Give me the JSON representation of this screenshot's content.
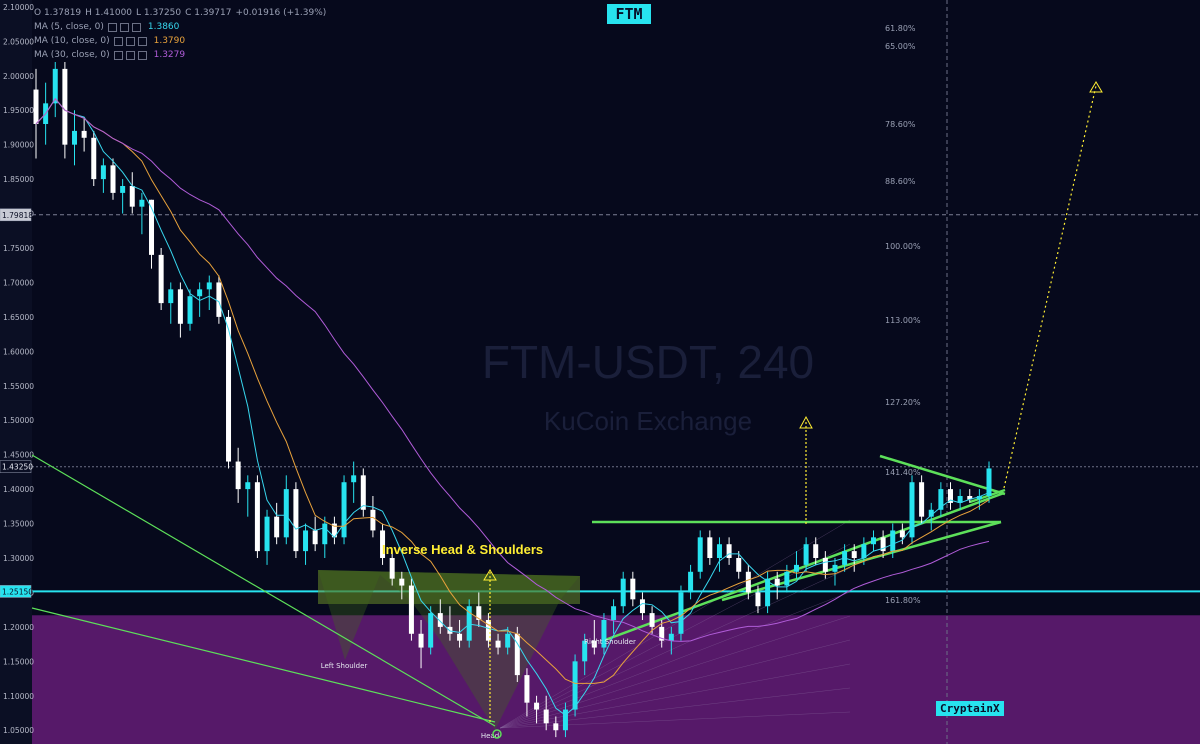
{
  "title": "FTM",
  "watermark": {
    "line1": "FTM-USDT, 240",
    "line2": "KuCoin Exchange"
  },
  "author": "CryptainX",
  "legend": {
    "ohlc": {
      "o": "O 1.37819",
      "h": "H 1.41000",
      "l": "L 1.37250",
      "c": "C 1.39717",
      "chg": "+0.01916 (+1.39%)"
    },
    "ma": [
      {
        "label": "MA (5, close, 0)",
        "value": "1.3860",
        "color": "#38d8ef"
      },
      {
        "label": "MA (10, close, 0)",
        "value": "1.3790",
        "color": "#e8a23c"
      },
      {
        "label": "MA (30, close, 0)",
        "value": "1.3279",
        "color": "#b05cd8"
      }
    ]
  },
  "annotations": {
    "pattern": "Inverse Head & Shoulders",
    "left_shoulder": "Left Shoulder",
    "head": "Head",
    "right_shoulder": "Right Shoulder"
  },
  "chart_data": {
    "type": "candlestick",
    "y_axis": {
      "side": "left",
      "ticks": [
        "2.10000",
        "2.05000",
        "2.00000",
        "1.95000",
        "1.90000",
        "1.85000",
        "1.80000",
        "1.75000",
        "1.70000",
        "1.65000",
        "1.60000",
        "1.55000",
        "1.50000",
        "1.45000",
        "1.40000",
        "1.35000",
        "1.30000",
        "1.25000",
        "1.20000",
        "1.15000",
        "1.10000",
        "1.05000"
      ],
      "range": [
        1.03,
        2.11
      ]
    },
    "price_labels": {
      "current": "1.43250",
      "crosshair": "1.79818",
      "support": "1.25150"
    },
    "levels": {
      "support": 1.2515,
      "crosshair": 1.79818,
      "current": 1.4325
    },
    "zones": {
      "purple_below": 1.217
    },
    "candles": [
      [
        1.98,
        2.01,
        1.88,
        1.93
      ],
      [
        1.93,
        1.99,
        1.9,
        1.96
      ],
      [
        1.96,
        2.02,
        1.94,
        2.01
      ],
      [
        2.01,
        2.02,
        1.88,
        1.9
      ],
      [
        1.9,
        1.95,
        1.87,
        1.92
      ],
      [
        1.92,
        1.94,
        1.89,
        1.91
      ],
      [
        1.91,
        1.92,
        1.84,
        1.85
      ],
      [
        1.85,
        1.88,
        1.83,
        1.87
      ],
      [
        1.87,
        1.88,
        1.82,
        1.83
      ],
      [
        1.83,
        1.85,
        1.8,
        1.84
      ],
      [
        1.84,
        1.86,
        1.8,
        1.81
      ],
      [
        1.81,
        1.83,
        1.77,
        1.82
      ],
      [
        1.82,
        1.82,
        1.72,
        1.74
      ],
      [
        1.74,
        1.75,
        1.66,
        1.67
      ],
      [
        1.67,
        1.7,
        1.64,
        1.69
      ],
      [
        1.69,
        1.7,
        1.62,
        1.64
      ],
      [
        1.64,
        1.69,
        1.63,
        1.68
      ],
      [
        1.68,
        1.7,
        1.65,
        1.69
      ],
      [
        1.69,
        1.71,
        1.66,
        1.7
      ],
      [
        1.7,
        1.71,
        1.64,
        1.65
      ],
      [
        1.65,
        1.66,
        1.43,
        1.44
      ],
      [
        1.44,
        1.46,
        1.38,
        1.4
      ],
      [
        1.4,
        1.42,
        1.36,
        1.41
      ],
      [
        1.41,
        1.42,
        1.3,
        1.31
      ],
      [
        1.31,
        1.37,
        1.29,
        1.36
      ],
      [
        1.36,
        1.38,
        1.32,
        1.33
      ],
      [
        1.33,
        1.42,
        1.32,
        1.4
      ],
      [
        1.4,
        1.41,
        1.3,
        1.31
      ],
      [
        1.31,
        1.35,
        1.29,
        1.34
      ],
      [
        1.34,
        1.36,
        1.31,
        1.32
      ],
      [
        1.32,
        1.36,
        1.3,
        1.35
      ],
      [
        1.35,
        1.36,
        1.32,
        1.33
      ],
      [
        1.33,
        1.42,
        1.32,
        1.41
      ],
      [
        1.41,
        1.44,
        1.38,
        1.42
      ],
      [
        1.42,
        1.43,
        1.36,
        1.37
      ],
      [
        1.37,
        1.39,
        1.33,
        1.34
      ],
      [
        1.34,
        1.35,
        1.29,
        1.3
      ],
      [
        1.3,
        1.31,
        1.26,
        1.27
      ],
      [
        1.27,
        1.28,
        1.24,
        1.26
      ],
      [
        1.26,
        1.27,
        1.18,
        1.19
      ],
      [
        1.19,
        1.21,
        1.14,
        1.17
      ],
      [
        1.17,
        1.23,
        1.16,
        1.22
      ],
      [
        1.22,
        1.24,
        1.19,
        1.2
      ],
      [
        1.2,
        1.23,
        1.18,
        1.19
      ],
      [
        1.19,
        1.21,
        1.17,
        1.18
      ],
      [
        1.18,
        1.24,
        1.17,
        1.23
      ],
      [
        1.23,
        1.25,
        1.2,
        1.21
      ],
      [
        1.21,
        1.22,
        1.17,
        1.18
      ],
      [
        1.18,
        1.19,
        1.16,
        1.17
      ],
      [
        1.17,
        1.2,
        1.16,
        1.19
      ],
      [
        1.19,
        1.2,
        1.12,
        1.13
      ],
      [
        1.13,
        1.14,
        1.07,
        1.09
      ],
      [
        1.09,
        1.1,
        1.06,
        1.08
      ],
      [
        1.08,
        1.1,
        1.05,
        1.06
      ],
      [
        1.06,
        1.07,
        1.04,
        1.05
      ],
      [
        1.05,
        1.09,
        1.04,
        1.08
      ],
      [
        1.08,
        1.16,
        1.07,
        1.15
      ],
      [
        1.15,
        1.19,
        1.13,
        1.18
      ],
      [
        1.18,
        1.21,
        1.16,
        1.17
      ],
      [
        1.17,
        1.22,
        1.16,
        1.21
      ],
      [
        1.21,
        1.24,
        1.19,
        1.23
      ],
      [
        1.23,
        1.28,
        1.22,
        1.27
      ],
      [
        1.27,
        1.28,
        1.23,
        1.24
      ],
      [
        1.24,
        1.25,
        1.21,
        1.22
      ],
      [
        1.22,
        1.23,
        1.19,
        1.2
      ],
      [
        1.2,
        1.21,
        1.17,
        1.18
      ],
      [
        1.18,
        1.2,
        1.16,
        1.19
      ],
      [
        1.19,
        1.26,
        1.18,
        1.25
      ],
      [
        1.25,
        1.29,
        1.24,
        1.28
      ],
      [
        1.28,
        1.34,
        1.27,
        1.33
      ],
      [
        1.33,
        1.34,
        1.29,
        1.3
      ],
      [
        1.3,
        1.33,
        1.28,
        1.32
      ],
      [
        1.32,
        1.33,
        1.29,
        1.3
      ],
      [
        1.3,
        1.31,
        1.27,
        1.28
      ],
      [
        1.28,
        1.29,
        1.24,
        1.25
      ],
      [
        1.25,
        1.26,
        1.22,
        1.23
      ],
      [
        1.23,
        1.28,
        1.22,
        1.27
      ],
      [
        1.27,
        1.28,
        1.24,
        1.26
      ],
      [
        1.26,
        1.29,
        1.25,
        1.28
      ],
      [
        1.28,
        1.31,
        1.27,
        1.29
      ],
      [
        1.29,
        1.33,
        1.28,
        1.32
      ],
      [
        1.32,
        1.33,
        1.29,
        1.3
      ],
      [
        1.3,
        1.31,
        1.27,
        1.28
      ],
      [
        1.28,
        1.3,
        1.26,
        1.29
      ],
      [
        1.29,
        1.32,
        1.28,
        1.31
      ],
      [
        1.31,
        1.32,
        1.28,
        1.3
      ],
      [
        1.3,
        1.33,
        1.29,
        1.32
      ],
      [
        1.32,
        1.34,
        1.31,
        1.33
      ],
      [
        1.33,
        1.34,
        1.3,
        1.31
      ],
      [
        1.31,
        1.35,
        1.3,
        1.34
      ],
      [
        1.34,
        1.35,
        1.32,
        1.33
      ],
      [
        1.33,
        1.42,
        1.32,
        1.41
      ],
      [
        1.41,
        1.42,
        1.35,
        1.36
      ],
      [
        1.36,
        1.38,
        1.34,
        1.37
      ],
      [
        1.37,
        1.41,
        1.36,
        1.4
      ],
      [
        1.4,
        1.41,
        1.37,
        1.38
      ],
      [
        1.38,
        1.4,
        1.37,
        1.39
      ],
      [
        1.39,
        1.4,
        1.38,
        1.385
      ],
      [
        1.385,
        1.4,
        1.37,
        1.39
      ],
      [
        1.39,
        1.44,
        1.38,
        1.43
      ]
    ],
    "fib_right": [
      "61.80%",
      "65.00%",
      "78.60%",
      "88.60%",
      "100.00%",
      "113.00%",
      "127.20%",
      "141.40%",
      "161.80%"
    ]
  }
}
